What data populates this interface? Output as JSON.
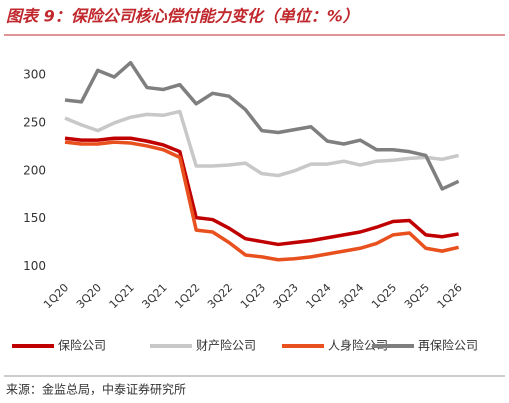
{
  "chart_data": {
    "type": "line",
    "title": "图表 9：保险公司核心偿付能力变化（单位：%）",
    "source": "来源：金监总局，中泰证券研究所",
    "categories": [
      "1Q20",
      null,
      "3Q20",
      null,
      "1Q21",
      null,
      "3Q21",
      null,
      "1Q22",
      null,
      "3Q22",
      null,
      "1Q23",
      null,
      "3Q23",
      null,
      "1Q24",
      null,
      "3Q24",
      null,
      "1Q25",
      null,
      "3Q25",
      null,
      "1Q26"
    ],
    "series": [
      {
        "name": "保险公司",
        "color": "#c00000",
        "values": [
          234,
          232,
          232,
          234,
          234,
          231,
          227,
          220,
          151,
          149,
          140,
          129,
          126,
          123,
          125,
          127,
          130,
          133,
          136,
          141,
          147,
          148,
          133,
          131,
          134
        ]
      },
      {
        "name": "财产险公司",
        "color": "#c8c8c8",
        "values": [
          255,
          248,
          242,
          250,
          256,
          259,
          258,
          262,
          205,
          205,
          206,
          208,
          197,
          195,
          200,
          207,
          207,
          210,
          206,
          210,
          211,
          213,
          214,
          212,
          216
        ]
      },
      {
        "name": "人身险公司",
        "color": "#e8501e",
        "values": [
          230,
          228,
          228,
          230,
          229,
          226,
          222,
          214,
          138,
          136,
          125,
          112,
          110,
          107,
          108,
          110,
          113,
          116,
          119,
          124,
          133,
          135,
          119,
          116,
          120
        ]
      },
      {
        "name": "再保险公司",
        "color": "#7f7f7f",
        "values": [
          274,
          272,
          305,
          298,
          313,
          287,
          285,
          290,
          270,
          281,
          278,
          264,
          242,
          240,
          243,
          246,
          231,
          228,
          232,
          222,
          222,
          220,
          216,
          181,
          189
        ]
      }
    ],
    "ylim": [
      90,
      320
    ],
    "yticks": [
      100,
      150,
      200,
      250,
      300
    ],
    "grid": false
  }
}
